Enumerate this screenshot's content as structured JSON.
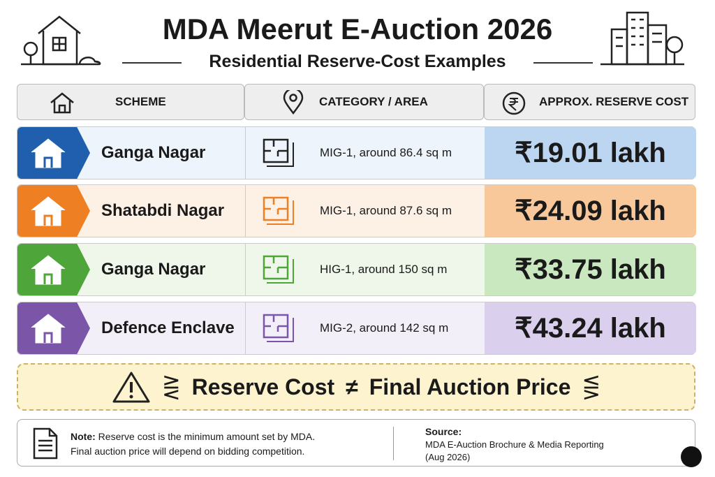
{
  "header": {
    "title": "MDA Meerut E-Auction 2026",
    "subtitle": "Residential Reserve-Cost Examples"
  },
  "table": {
    "headers": [
      "SCHEME",
      "CATEGORY / AREA",
      "APPROX. RESERVE COST"
    ],
    "rows": [
      [
        "Ganga Nagar",
        "MIG-1, around 86.4 sq m",
        "₹19.01 lakh"
      ],
      [
        "Shatabdi Nagar",
        "MIG-1, around 87.6 sq m",
        "₹24.09 lakh"
      ],
      [
        "Ganga Nagar",
        "HIG-1, around 150 sq m",
        "₹33.75 lakh"
      ],
      [
        "Defence Enclave",
        "MIG-2, around 142 sq m",
        "₹43.24 lakh"
      ]
    ]
  },
  "banner": {
    "left": "Reserve Cost",
    "symbol": "≠",
    "right": "Final Auction Price"
  },
  "note": {
    "label": "Note:",
    "line1": "Reserve cost is the minimum amount set by MDA.",
    "line2": "Final auction price will depend on bidding competition."
  },
  "source": {
    "label": "Source:",
    "line1": "MDA E-Auction Brochure & Media Reporting",
    "line2": "(Aug 2026)"
  }
}
